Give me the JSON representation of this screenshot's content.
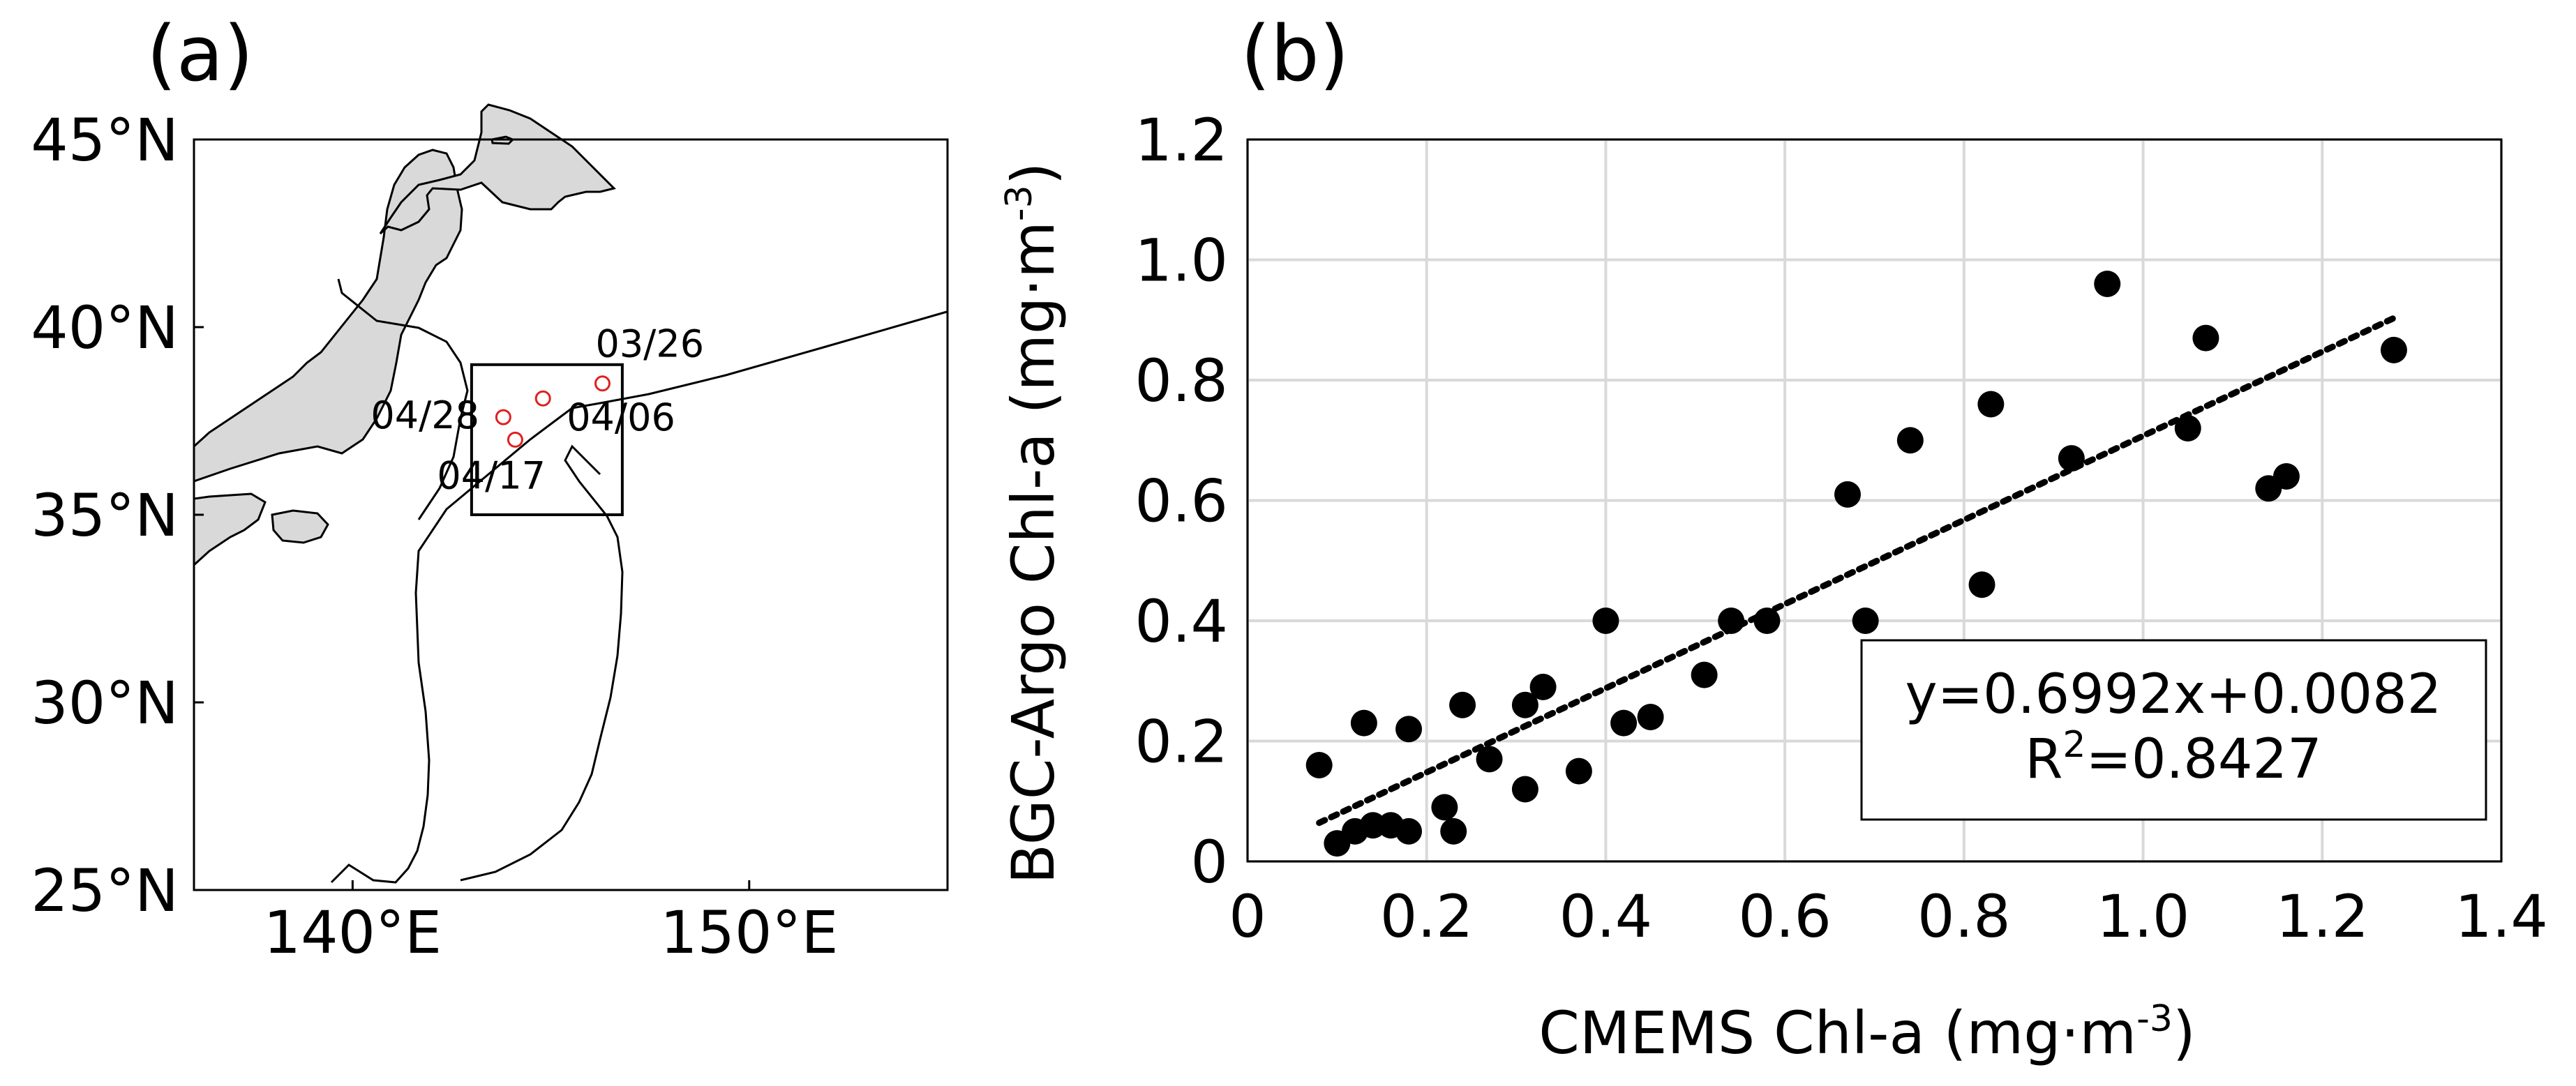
{
  "chart_data": [
    {
      "panel": "(a)",
      "type": "map",
      "xlim": [
        136,
        155
      ],
      "ylim": [
        25,
        45
      ],
      "x_ticks": [
        140,
        150
      ],
      "x_tick_labels": [
        "140°E",
        "150°E"
      ],
      "y_ticks": [
        25,
        30,
        35,
        40,
        45
      ],
      "y_tick_labels": [
        "25°N",
        "30°N",
        "35°N",
        "40°N",
        "45°N"
      ],
      "box": {
        "lon": [
          143,
          146.8
        ],
        "lat": [
          35,
          39
        ]
      },
      "points": [
        {
          "label": "03/26",
          "lon": 146.3,
          "lat": 38.5
        },
        {
          "label": "04/06",
          "lon": 144.8,
          "lat": 38.1
        },
        {
          "label": "04/28",
          "lon": 143.8,
          "lat": 37.6
        },
        {
          "label": "04/17",
          "lon": 144.1,
          "lat": 37.0
        }
      ],
      "point_color": "#e02020",
      "land_color": "#d9d9d9"
    },
    {
      "panel": "(b)",
      "type": "scatter",
      "xlabel": "CMEMS Chl-a (mg·m",
      "xlabel_sup": "-3",
      "xlabel_end": ")",
      "ylabel": "BGC-Argo Chl-a (mg·m",
      "ylabel_sup": "-3",
      "ylabel_end": ")",
      "xlim": [
        0,
        1.4
      ],
      "ylim": [
        0,
        1.2
      ],
      "x_ticks": [
        0,
        0.2,
        0.4,
        0.6,
        0.8,
        1.0,
        1.2,
        1.4
      ],
      "x_tick_labels": [
        "0",
        "0.2",
        "0.4",
        "0.6",
        "0.8",
        "1.0",
        "1.2",
        "1.4"
      ],
      "y_ticks": [
        0,
        0.2,
        0.4,
        0.6,
        0.8,
        1.0,
        1.2
      ],
      "y_tick_labels": [
        "0",
        "0.2",
        "0.4",
        "0.6",
        "0.8",
        "1.0",
        "1.2"
      ],
      "grid": true,
      "points": [
        [
          0.08,
          0.16
        ],
        [
          0.1,
          0.03
        ],
        [
          0.12,
          0.05
        ],
        [
          0.13,
          0.23
        ],
        [
          0.14,
          0.06
        ],
        [
          0.16,
          0.06
        ],
        [
          0.18,
          0.05
        ],
        [
          0.18,
          0.22
        ],
        [
          0.22,
          0.09
        ],
        [
          0.23,
          0.05
        ],
        [
          0.24,
          0.26
        ],
        [
          0.27,
          0.17
        ],
        [
          0.31,
          0.12
        ],
        [
          0.31,
          0.26
        ],
        [
          0.33,
          0.29
        ],
        [
          0.37,
          0.15
        ],
        [
          0.4,
          0.4
        ],
        [
          0.42,
          0.23
        ],
        [
          0.45,
          0.24
        ],
        [
          0.51,
          0.31
        ],
        [
          0.54,
          0.4
        ],
        [
          0.58,
          0.4
        ],
        [
          0.67,
          0.61
        ],
        [
          0.69,
          0.4
        ],
        [
          0.74,
          0.7
        ],
        [
          0.82,
          0.46
        ],
        [
          0.83,
          0.76
        ],
        [
          0.92,
          0.67
        ],
        [
          0.96,
          0.96
        ],
        [
          1.05,
          0.72
        ],
        [
          1.07,
          0.87
        ],
        [
          1.14,
          0.62
        ],
        [
          1.16,
          0.64
        ],
        [
          1.28,
          0.85
        ]
      ],
      "fit": {
        "slope": 0.6992,
        "intercept": 0.0082,
        "x_range": [
          0.08,
          1.28
        ]
      },
      "equation": "y=0.6992x+0.0082",
      "r2_prefix": "R",
      "r2_sup": "2",
      "r2_value": "=0.8427"
    }
  ]
}
